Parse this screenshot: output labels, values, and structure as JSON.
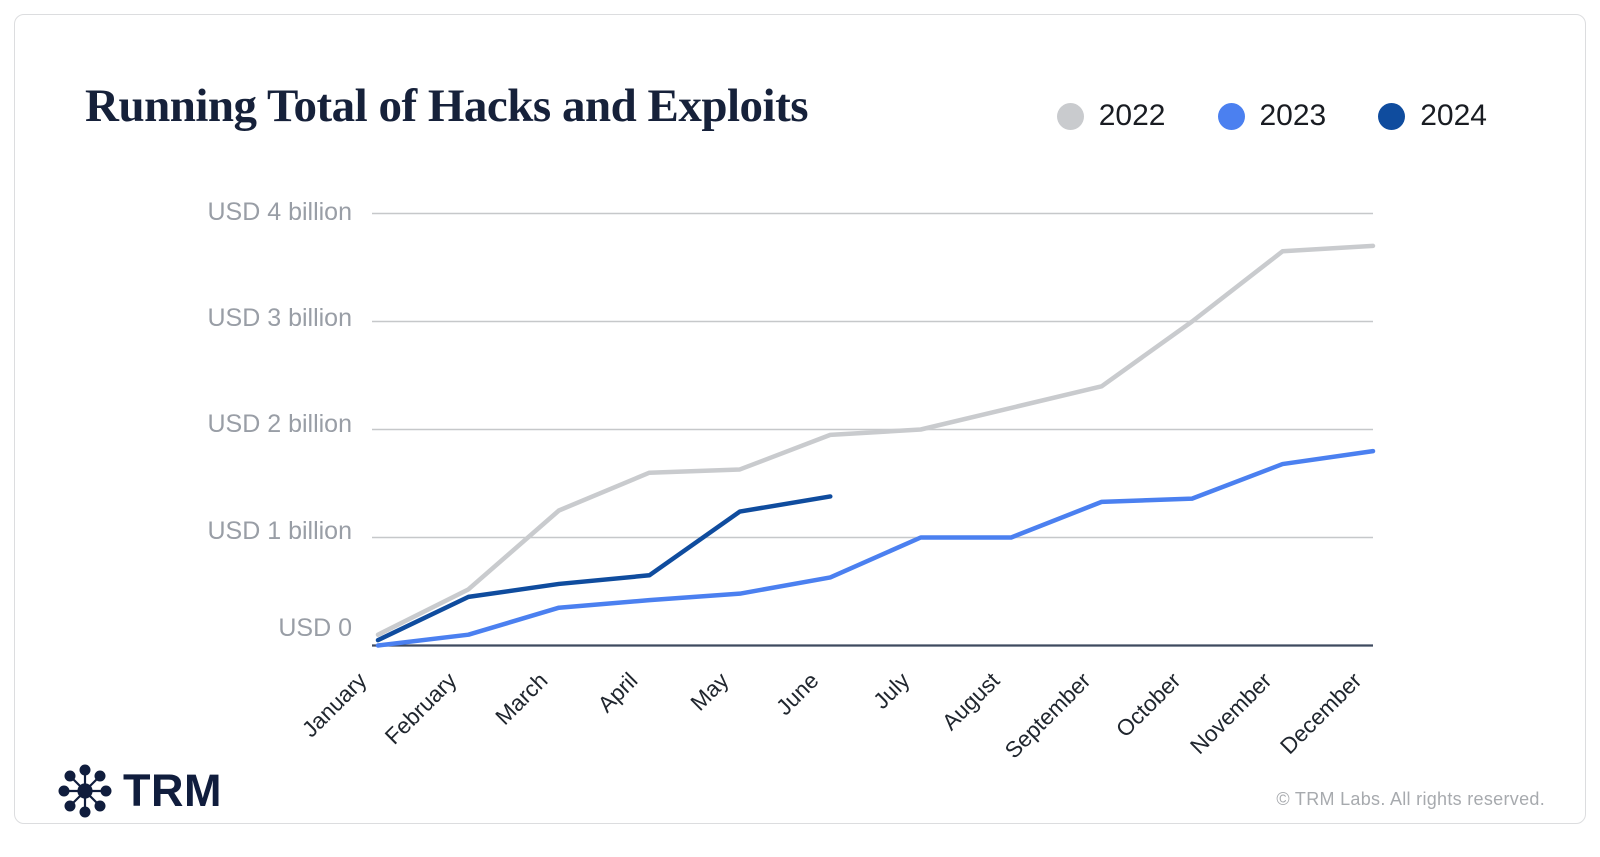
{
  "title": "Running Total of Hacks and Exploits",
  "footer": {
    "brand": "TRM",
    "copyright": "© TRM Labs. All rights reserved."
  },
  "chart_data": {
    "type": "line",
    "title": "Running Total of Hacks and Exploits",
    "unit": "USD billions",
    "categories": [
      "January",
      "February",
      "March",
      "April",
      "May",
      "June",
      "July",
      "August",
      "September",
      "October",
      "November",
      "December"
    ],
    "series": [
      {
        "name": "2022",
        "color": "#c9cbce",
        "values": [
          0.1,
          0.52,
          1.25,
          1.6,
          1.63,
          1.95,
          2.0,
          2.2,
          2.4,
          3.0,
          3.65,
          3.7
        ]
      },
      {
        "name": "2023",
        "color": "#4b80f0",
        "values": [
          0.0,
          0.1,
          0.35,
          0.42,
          0.48,
          0.63,
          1.0,
          1.0,
          1.33,
          1.36,
          1.68,
          1.8
        ]
      },
      {
        "name": "2024",
        "color": "#0f4c9e",
        "values": [
          0.05,
          0.45,
          0.57,
          0.65,
          1.24,
          1.38
        ]
      }
    ],
    "y_tick_labels": [
      "USD 0",
      "USD 1 billion",
      "USD 2 billion",
      "USD 3 billion",
      "USD 4 billion"
    ],
    "ylim": [
      0,
      4
    ],
    "grid": "horizontal-only",
    "legend_position": "top-right"
  }
}
